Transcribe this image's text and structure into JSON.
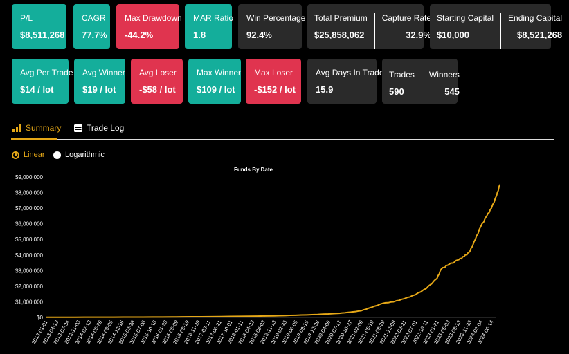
{
  "row1": [
    {
      "label": "P/L",
      "value": "$8,511,268",
      "color": "teal"
    },
    {
      "label": "CAGR",
      "value": "77.7%",
      "color": "teal"
    },
    {
      "label": "Max Drawdown",
      "value": "-44.2%",
      "color": "red"
    },
    {
      "label": "MAR Ratio",
      "value": "1.8",
      "color": "teal"
    },
    {
      "label": "Win Percentage",
      "value": "92.4%",
      "color": "dark"
    }
  ],
  "premium": {
    "left_label": "Total Premium",
    "left_value": "$25,858,062",
    "right_label": "Capture Rate",
    "right_value": "32.9%"
  },
  "capital": {
    "left_label": "Starting Capital",
    "left_value": "$10,000",
    "right_label": "Ending Capital",
    "right_value": "$8,521,268"
  },
  "row2": [
    {
      "label": "Avg Per Trade",
      "value": "$14 / lot",
      "color": "teal"
    },
    {
      "label": "Avg Winner",
      "value": "$19 / lot",
      "color": "teal"
    },
    {
      "label": "Avg Loser",
      "value": "-$58 / lot",
      "color": "red"
    },
    {
      "label": "Max Winner",
      "value": "$109 / lot",
      "color": "teal"
    },
    {
      "label": "Max Loser",
      "value": "-$152 / lot",
      "color": "red"
    },
    {
      "label": "Avg Days In Trade",
      "value": "15.9",
      "color": "dark"
    }
  ],
  "trades": {
    "left_label": "Trades",
    "left_value": "590",
    "right_label": "Winners",
    "right_value": "545"
  },
  "tabs": {
    "summary": "Summary",
    "trade_log": "Trade Log"
  },
  "scale": {
    "linear": "Linear",
    "logarithmic": "Logarithmic"
  },
  "colors": {
    "teal": "#14ae9b",
    "red": "#e0344f",
    "dark": "#2a2a2a",
    "accent": "#e6a817"
  },
  "chart_data": {
    "type": "line",
    "title": "Funds By Date",
    "xlabel": "",
    "ylabel": "",
    "ylim": [
      0,
      9000000
    ],
    "yticks": [
      "$0",
      "$1,000,000",
      "$2,000,000",
      "$3,000,000",
      "$4,000,000",
      "$5,000,000",
      "$6,000,000",
      "$7,000,000",
      "$8,000,000",
      "$9,000,000"
    ],
    "xticks": [
      "2013-01-01",
      "2013-04-13",
      "2013-07-24",
      "2013-11-03",
      "2014-02-13",
      "2014-05-26",
      "2014-09-05",
      "2014-12-16",
      "2015-03-28",
      "2015-07-08",
      "2015-10-18",
      "2016-01-28",
      "2016-05-09",
      "2016-08-19",
      "2016-11-29",
      "2017-03-11",
      "2017-06-21",
      "2017-10-01",
      "2018-01-11",
      "2018-04-23",
      "2018-08-03",
      "2018-11-13",
      "2019-02-23",
      "2019-06-05",
      "2019-09-15",
      "2019-12-26",
      "2020-04-06",
      "2020-07-17",
      "2020-10-27",
      "2021-02-06",
      "2021-05-19",
      "2021-08-29",
      "2021-12-09",
      "2022-03-21",
      "2022-07-01",
      "2022-10-11",
      "2023-01-21",
      "2023-05-03",
      "2023-08-13",
      "2023-11-23",
      "2024-03-04",
      "2024-06-14"
    ],
    "series": [
      {
        "name": "",
        "color": "#e6a817",
        "points": [
          [
            "2013-01-01",
            10000
          ],
          [
            "2014-01-01",
            14000
          ],
          [
            "2015-01-01",
            20000
          ],
          [
            "2016-01-01",
            30000
          ],
          [
            "2017-01-01",
            45000
          ],
          [
            "2018-01-01",
            70000
          ],
          [
            "2018-11-13",
            100000
          ],
          [
            "2019-06-05",
            140000
          ],
          [
            "2019-12-26",
            190000
          ],
          [
            "2020-07-17",
            260000
          ],
          [
            "2020-10-27",
            330000
          ],
          [
            "2021-02-06",
            420000
          ],
          [
            "2021-05-19",
            650000
          ],
          [
            "2021-08-29",
            900000
          ],
          [
            "2021-12-09",
            1000000
          ],
          [
            "2022-03-21",
            1200000
          ],
          [
            "2022-07-01",
            1450000
          ],
          [
            "2022-10-11",
            1850000
          ],
          [
            "2023-01-21",
            2500000
          ],
          [
            "2023-03-01",
            3100000
          ],
          [
            "2023-05-03",
            3350000
          ],
          [
            "2023-08-13",
            3700000
          ],
          [
            "2023-10-01",
            3900000
          ],
          [
            "2023-11-23",
            4200000
          ],
          [
            "2024-01-15",
            5000000
          ],
          [
            "2024-03-04",
            5800000
          ],
          [
            "2024-05-01",
            6500000
          ],
          [
            "2024-06-14",
            7000000
          ],
          [
            "2024-08-01",
            7800000
          ],
          [
            "2024-09-01",
            8521268
          ]
        ]
      }
    ]
  }
}
